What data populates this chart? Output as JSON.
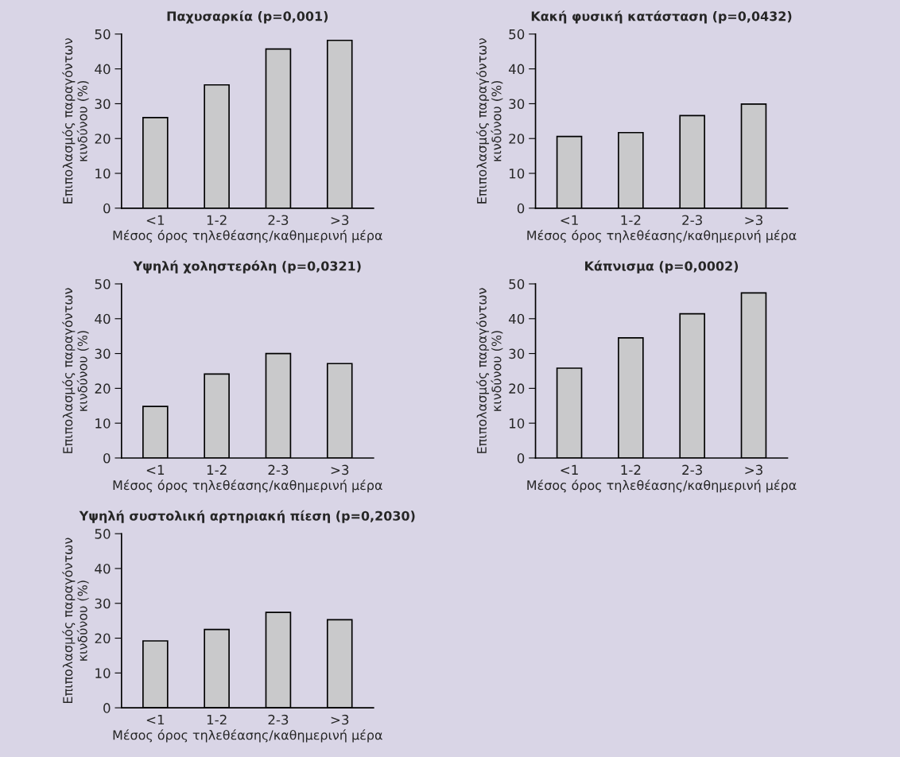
{
  "chart_data": [
    {
      "type": "bar",
      "title": "Παχυσαρκία (p=0,001)",
      "xlabel": "Μέσος όρος τηλεθέασης/καθημερινή μέρα",
      "ylabel": "Επιπολασμός παραγόντων\nκινδύνου (%)",
      "categories": [
        "<1",
        "1-2",
        "2-3",
        ">3"
      ],
      "values": [
        26,
        35.4,
        45.7,
        48.2
      ],
      "color": "#c9c9cb",
      "ylim": [
        0,
        50
      ],
      "yticks": [
        0,
        10,
        20,
        30,
        40,
        50
      ]
    },
    {
      "type": "bar",
      "title": "Κακή φυσική κατάσταση (p=0,0432)",
      "xlabel": "Μέσος όρος τηλεθέασης/καθημερινή μέρα",
      "ylabel": "Επιπολασμός παραγόντων\nκινδύνου (%)",
      "categories": [
        "<1",
        "1-2",
        "2-3",
        ">3"
      ],
      "values": [
        20.6,
        21.7,
        26.6,
        29.9
      ],
      "color": "#c9c9cb",
      "ylim": [
        0,
        50
      ],
      "yticks": [
        0,
        10,
        20,
        30,
        40,
        50
      ]
    },
    {
      "type": "bar",
      "title": "Υψηλή χοληστερόλη (p=0,0321)",
      "xlabel": "Μέσος όρος τηλεθέασης/καθημερινή μέρα",
      "ylabel": "Επιπολασμός παραγόντων\nκινδύνου (%)",
      "categories": [
        "<1",
        "1-2",
        "2-3",
        ">3"
      ],
      "values": [
        14.8,
        24.1,
        30,
        27.1
      ],
      "color": "#c9c9cb",
      "ylim": [
        0,
        50
      ],
      "yticks": [
        0,
        10,
        20,
        30,
        40,
        50
      ]
    },
    {
      "type": "bar",
      "title": "Κάπνισμα (p=0,0002)",
      "xlabel": "Μέσος όρος τηλεθέασης/καθημερινή μέρα",
      "ylabel": "Επιπολασμός παραγόντων\nκινδύνου (%)",
      "categories": [
        "<1",
        "1-2",
        "2-3",
        ">3"
      ],
      "values": [
        25.8,
        34.5,
        41.4,
        47.4
      ],
      "color": "#c9c9cb",
      "ylim": [
        0,
        50
      ],
      "yticks": [
        0,
        10,
        20,
        30,
        40,
        50
      ]
    },
    {
      "type": "bar",
      "title": "Υψηλή συστολική αρτηριακή πίεση (p=0,2030)",
      "xlabel": "Μέσος όρος τηλεθέασης/καθημερινή μέρα",
      "ylabel": "Επιπολασμός παραγόντων\nκινδύνου (%)",
      "categories": [
        "<1",
        "1-2",
        "2-3",
        ">3"
      ],
      "values": [
        19.2,
        22.5,
        27.4,
        25.3
      ],
      "color": "#c9c9cb",
      "ylim": [
        0,
        50
      ],
      "yticks": [
        0,
        10,
        20,
        30,
        40,
        50
      ]
    }
  ]
}
